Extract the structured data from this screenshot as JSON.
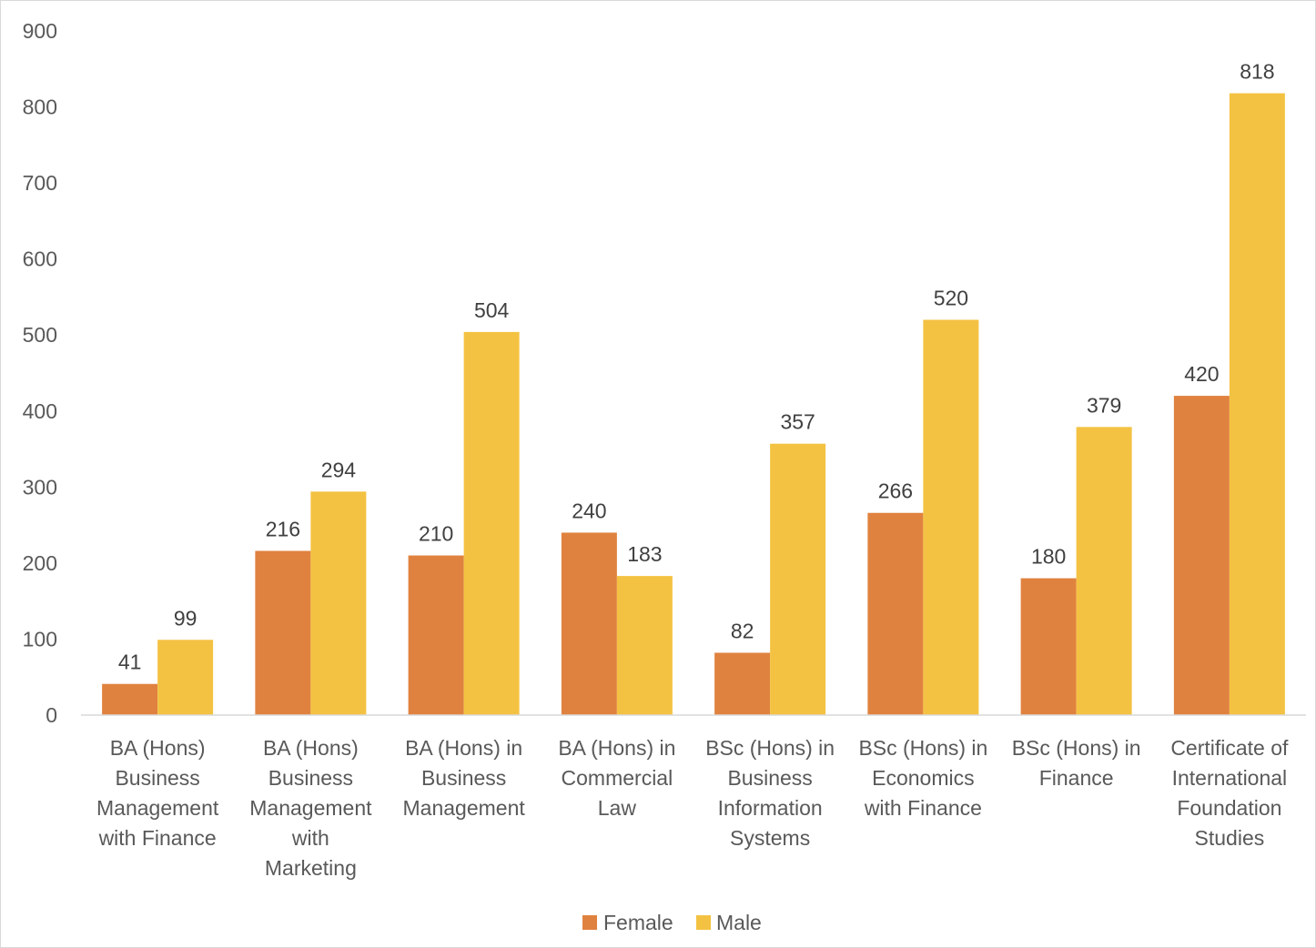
{
  "chart_data": {
    "type": "bar",
    "title": "",
    "xlabel": "",
    "ylabel": "",
    "ylim": [
      0,
      900
    ],
    "yticks": [
      0,
      100,
      200,
      300,
      400,
      500,
      600,
      700,
      800,
      900
    ],
    "grid": false,
    "legend_position": "bottom",
    "categories": [
      [
        "BA (Hons)",
        "Business",
        "Management",
        "with Finance"
      ],
      [
        "BA (Hons)",
        "Business",
        "Management",
        "with",
        "Marketing"
      ],
      [
        "BA (Hons) in",
        "Business",
        "Management"
      ],
      [
        "BA (Hons) in",
        "Commercial",
        "Law"
      ],
      [
        "BSc (Hons) in",
        "Business",
        "Information",
        "Systems"
      ],
      [
        "BSc (Hons) in",
        "Economics",
        "with Finance"
      ],
      [
        "BSc (Hons) in",
        "Finance"
      ],
      [
        "Certificate of",
        "International",
        "Foundation",
        "Studies"
      ]
    ],
    "series": [
      {
        "name": "Female",
        "color": "#E0823F",
        "values": [
          41,
          216,
          210,
          240,
          82,
          266,
          180,
          420
        ]
      },
      {
        "name": "Male",
        "color": "#F4C242",
        "values": [
          99,
          294,
          504,
          183,
          357,
          520,
          379,
          818
        ]
      }
    ],
    "data_labels": true
  }
}
